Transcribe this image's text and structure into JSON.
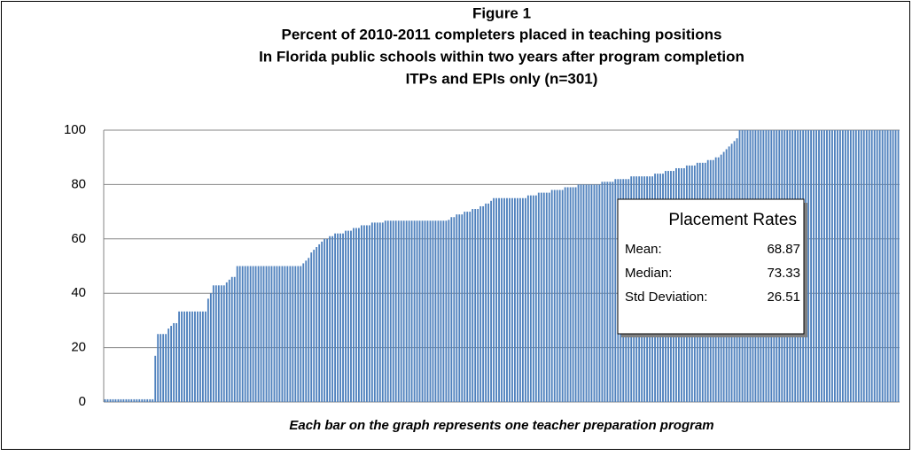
{
  "chart_data": {
    "type": "bar",
    "title": [
      "Figure 1",
      "Percent of 2010-2011  completers placed in teaching positions",
      "In Florida public schools within two years after program completion",
      "ITPs and EPIs only (n=301)"
    ],
    "note": "Each bar on the graph represents one teacher preparation program",
    "annotation": {
      "title": "Placement Rates",
      "rows": [
        [
          "Mean:",
          "68.87"
        ],
        [
          "Median:",
          "73.33"
        ],
        [
          "Std Deviation:",
          "26.51"
        ]
      ]
    },
    "color": "#4f81bd",
    "ylim": [
      0,
      100
    ],
    "yticks": [
      0,
      20,
      40,
      60,
      80,
      100
    ],
    "grid": true,
    "values": [
      1,
      1,
      1,
      1,
      1,
      1,
      1,
      1,
      1,
      1,
      1,
      1,
      1,
      1,
      1,
      1,
      1,
      1,
      1,
      17,
      25,
      25,
      25,
      25,
      27,
      28,
      29,
      29,
      33.3,
      33.3,
      33.3,
      33.3,
      33.3,
      33.3,
      33.3,
      33.3,
      33.3,
      33.3,
      33.3,
      38,
      40,
      42.9,
      42.9,
      42.9,
      42.9,
      42.9,
      44,
      45,
      46,
      46,
      50,
      50,
      50,
      50,
      50,
      50,
      50,
      50,
      50,
      50,
      50,
      50,
      50,
      50,
      50,
      50,
      50,
      50,
      50,
      50,
      50,
      50,
      50,
      50,
      50,
      51,
      52,
      53,
      55,
      56,
      57,
      58,
      59,
      60,
      60,
      61,
      61,
      62,
      62,
      62,
      62,
      63,
      63,
      63,
      64,
      64,
      64,
      65,
      65,
      65,
      65,
      66,
      66,
      66,
      66,
      66,
      66.7,
      66.7,
      66.7,
      66.7,
      66.7,
      66.7,
      66.7,
      66.7,
      66.7,
      66.7,
      66.7,
      66.7,
      66.7,
      66.7,
      66.7,
      66.7,
      66.7,
      66.7,
      66.7,
      66.7,
      66.7,
      66.7,
      66.7,
      66.7,
      67,
      68,
      68,
      69,
      69,
      69,
      70,
      70,
      70,
      71,
      71,
      71,
      72,
      72,
      73,
      73,
      74,
      75,
      75,
      75,
      75,
      75,
      75,
      75,
      75,
      75,
      75,
      75,
      75,
      75,
      76,
      76,
      76,
      76,
      77,
      77,
      77,
      77,
      77,
      78,
      78,
      78,
      78,
      78,
      79,
      79,
      79,
      79,
      79,
      80,
      80,
      80,
      80,
      80,
      80,
      80,
      80,
      80,
      81,
      81,
      81,
      81,
      81,
      82,
      82,
      82,
      82,
      82,
      82,
      83,
      83,
      83,
      83,
      83,
      83,
      83,
      83,
      83,
      84,
      84,
      84,
      84,
      85,
      85,
      85,
      85,
      86,
      86,
      86,
      86,
      87,
      87,
      87,
      87,
      88,
      88,
      88,
      88,
      89,
      89,
      89,
      90,
      90,
      91,
      92,
      93,
      94,
      95,
      96,
      97,
      100,
      100,
      100,
      100,
      100,
      100,
      100,
      100,
      100,
      100,
      100,
      100,
      100,
      100,
      100,
      100,
      100,
      100,
      100,
      100,
      100,
      100,
      100,
      100,
      100,
      100,
      100,
      100,
      100,
      100,
      100,
      100,
      100,
      100,
      100,
      100,
      100,
      100,
      100,
      100,
      100,
      100,
      100,
      100,
      100,
      100,
      100,
      100,
      100,
      100,
      100,
      100,
      100,
      100,
      100,
      100,
      100,
      100,
      100,
      100,
      100
    ]
  }
}
